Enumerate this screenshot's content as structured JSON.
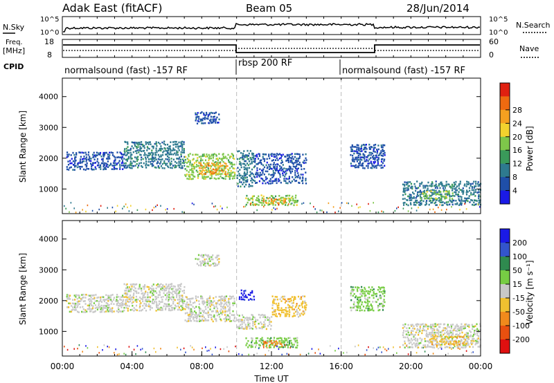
{
  "header": {
    "title": "Adak East (fitACF)",
    "beam": "Beam 05",
    "date": "28/Jun/2014"
  },
  "top_panels": {
    "nsky_label": "N.Sky",
    "nsearch_label": "N.Search",
    "nsky_ticks": [
      "10^5",
      "10^0"
    ],
    "nsearch_ticks": [
      "10^5",
      "10^0"
    ],
    "freq_label": "Freq.",
    "freq_unit": "[MHz]",
    "freq_ticks": [
      "18",
      "8"
    ],
    "nave_label": "Nave",
    "nave_ticks": [
      "60",
      "0"
    ],
    "cpid_label": "CPID",
    "cpid_segments": [
      {
        "label": "normalsound (fast) -157 RF",
        "start_hour": 0,
        "end_hour": 10
      },
      {
        "label": "rbsp 200 RF",
        "start_hour": 10,
        "end_hour": 16
      },
      {
        "label": "normalsound (fast) -157 RF",
        "start_hour": 16,
        "end_hour": 24
      }
    ]
  },
  "colors": {
    "power": [
      "#1a1ae6",
      "#1f4fa8",
      "#2e7a8f",
      "#3a9a5a",
      "#7ec64a",
      "#f2d22e",
      "#f5a020",
      "#ee6a10",
      "#e02010"
    ],
    "velocity": [
      "#1a1ae6",
      "#3355cc",
      "#2f8a4f",
      "#77cc44",
      "#c8c8c8",
      "#f0c030",
      "#f08a1c",
      "#e85010",
      "#e01010"
    ]
  },
  "chart_data": [
    {
      "type": "heatmap",
      "name": "power",
      "ylabel": "Slant Range [km]",
      "xlabel": "",
      "ylim": [
        200,
        4600
      ],
      "xlim": [
        0,
        24
      ],
      "y_ticks": [
        "1000",
        "2000",
        "3000",
        "4000"
      ],
      "colorbar_label": "Power [dB]",
      "colorbar_ticks": [
        "4",
        "8",
        "12",
        "16",
        "20",
        "24",
        "28"
      ],
      "regions": [
        {
          "t0": 0.2,
          "t1": 3.5,
          "r0": 1650,
          "r1": 2250,
          "level": 1
        },
        {
          "t0": 3.5,
          "t1": 7.0,
          "r0": 1700,
          "r1": 2600,
          "level": 2
        },
        {
          "t0": 7.0,
          "t1": 9.9,
          "r0": 1350,
          "r1": 2200,
          "level": 4
        },
        {
          "t0": 7.8,
          "t1": 9.5,
          "r0": 1500,
          "r1": 1900,
          "level": 6
        },
        {
          "t0": 7.6,
          "t1": 9.0,
          "r0": 3150,
          "r1": 3550,
          "level": 1
        },
        {
          "t0": 10.0,
          "t1": 11.0,
          "r0": 1100,
          "r1": 2300,
          "level": 2
        },
        {
          "t0": 11.0,
          "t1": 14.0,
          "r0": 1200,
          "r1": 2200,
          "level": 1
        },
        {
          "t0": 10.5,
          "t1": 13.5,
          "r0": 500,
          "r1": 850,
          "level": 4
        },
        {
          "t0": 11.5,
          "t1": 12.8,
          "r0": 550,
          "r1": 750,
          "level": 6
        },
        {
          "t0": 16.5,
          "t1": 18.5,
          "r0": 1700,
          "r1": 2500,
          "level": 1
        },
        {
          "t0": 19.5,
          "t1": 24.0,
          "r0": 500,
          "r1": 1300,
          "level": 2
        },
        {
          "t0": 20.5,
          "t1": 22.5,
          "r0": 700,
          "r1": 1000,
          "level": 4
        }
      ]
    },
    {
      "type": "heatmap",
      "name": "velocity",
      "ylabel": "Slant Range [km]",
      "xlabel": "Time UT",
      "ylim": [
        200,
        4600
      ],
      "xlim": [
        0,
        24
      ],
      "x_ticks": [
        "00:00",
        "04:00",
        "08:00",
        "12:00",
        "16:00",
        "20:00",
        "00:00"
      ],
      "y_ticks": [
        "1000",
        "2000",
        "3000",
        "4000"
      ],
      "colorbar_label": "Velocity [m s⁻¹]",
      "colorbar_ticks": [
        "200",
        "100",
        "50",
        "15",
        "-15",
        "-50",
        "-100",
        "-200"
      ],
      "regions": [
        {
          "t0": 0.2,
          "t1": 3.5,
          "r0": 1650,
          "r1": 2250,
          "level": 4
        },
        {
          "t0": 3.5,
          "t1": 7.0,
          "r0": 1700,
          "r1": 2600,
          "level": 4
        },
        {
          "t0": 7.0,
          "t1": 9.9,
          "r0": 1350,
          "r1": 2200,
          "level": 4
        },
        {
          "t0": 7.6,
          "t1": 9.0,
          "r0": 3150,
          "r1": 3550,
          "level": 4
        },
        {
          "t0": 10.1,
          "t1": 11.0,
          "r0": 2050,
          "r1": 2400,
          "level": 0
        },
        {
          "t0": 10.0,
          "t1": 12.0,
          "r0": 1100,
          "r1": 1600,
          "level": 4
        },
        {
          "t0": 12.0,
          "t1": 14.0,
          "r0": 1500,
          "r1": 2200,
          "level": 5
        },
        {
          "t0": 10.5,
          "t1": 13.5,
          "r0": 500,
          "r1": 850,
          "level": 3
        },
        {
          "t0": 11.5,
          "t1": 12.6,
          "r0": 550,
          "r1": 750,
          "level": 6
        },
        {
          "t0": 16.5,
          "t1": 18.5,
          "r0": 1700,
          "r1": 2500,
          "level": 3
        },
        {
          "t0": 19.5,
          "t1": 24.0,
          "r0": 500,
          "r1": 1300,
          "level": 4
        },
        {
          "t0": 21.0,
          "t1": 23.5,
          "r0": 600,
          "r1": 900,
          "level": 5
        }
      ]
    }
  ]
}
